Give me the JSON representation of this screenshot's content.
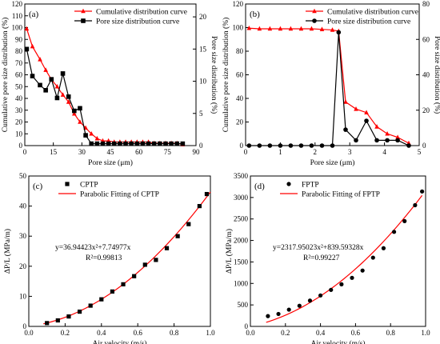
{
  "chart_data": [
    {
      "type": "line",
      "panel_label": "(a)",
      "xlabel": "Pore size (μm)",
      "ylabel": "Cumulative pore size distribution (%)",
      "y2label": "Pore size distribution (%)",
      "xlim": [
        0,
        90
      ],
      "ylim": [
        0,
        120
      ],
      "y2lim": [
        0,
        22
      ],
      "xticks": [
        0,
        15,
        30,
        45,
        60,
        75,
        90
      ],
      "yticks": [
        0,
        10,
        20,
        30,
        40,
        50,
        60,
        70,
        80,
        90,
        100,
        110,
        120
      ],
      "y2ticks": [
        0,
        5,
        10,
        15,
        20
      ],
      "legend_position": "top-right",
      "series": [
        {
          "name": "Cumulative distribution curve",
          "axis": "left",
          "color": "#ff0000",
          "marker": "triangle",
          "x": [
            1,
            4,
            8,
            11,
            14,
            17,
            20,
            23,
            26,
            29,
            32,
            35,
            38,
            41,
            44,
            47,
            50,
            53,
            56,
            59,
            62,
            65,
            68,
            71,
            74,
            77,
            80,
            83
          ],
          "y": [
            99,
            84,
            73,
            64,
            56,
            50,
            43,
            37,
            27,
            20,
            15,
            10,
            6,
            4,
            4,
            3,
            3,
            3,
            3,
            3,
            3,
            3,
            2,
            2,
            2,
            2,
            2,
            1
          ]
        },
        {
          "name": "Pore size distribution curve",
          "axis": "right",
          "color": "#000000",
          "marker": "square",
          "x": [
            1,
            4,
            8,
            11,
            14,
            17,
            20,
            23,
            26,
            29,
            32,
            35,
            38,
            41,
            44,
            47,
            50,
            53,
            56,
            59,
            62,
            65,
            68,
            71,
            74,
            77,
            80,
            83
          ],
          "y": [
            15.0,
            10.8,
            9.4,
            8.6,
            10.3,
            7.4,
            11.2,
            7.6,
            5.4,
            5.8,
            1.6,
            0.3,
            0.3,
            0.3,
            0.3,
            0.3,
            0.3,
            0.3,
            0.3,
            0.3,
            0.3,
            0.3,
            0.3,
            0.3,
            0.3,
            0.3,
            0.3,
            0.3
          ]
        }
      ]
    },
    {
      "type": "line",
      "panel_label": "(b)",
      "xlabel": "Pore size (μm)",
      "ylabel": "Cumulative pore size distribution (%)",
      "y2label": "Pore size distribution (%)",
      "xlim": [
        0,
        5
      ],
      "ylim": [
        0,
        120
      ],
      "y2lim": [
        0,
        80
      ],
      "xticks": [
        0,
        1,
        2,
        3,
        4,
        5
      ],
      "yticks": [
        0,
        20,
        40,
        60,
        80,
        100,
        120
      ],
      "y2ticks": [
        0,
        20,
        40,
        60,
        80
      ],
      "legend_position": "top-right",
      "series": [
        {
          "name": "Cumulative distribution curve",
          "axis": "left",
          "color": "#ff0000",
          "marker": "triangle",
          "x": [
            0.1,
            0.4,
            0.7,
            1.0,
            1.3,
            1.6,
            1.9,
            2.2,
            2.5,
            2.68,
            2.88,
            3.18,
            3.48,
            3.78,
            4.08,
            4.38,
            4.7
          ],
          "y": [
            99.5,
            99,
            99,
            99,
            99,
            99,
            99,
            98.5,
            98,
            97,
            37,
            31,
            28,
            16,
            10,
            7,
            2
          ]
        },
        {
          "name": "Pore size distribution curve",
          "axis": "right",
          "color": "#000000",
          "marker": "circle",
          "x": [
            0.1,
            0.4,
            0.7,
            1.0,
            1.3,
            1.6,
            1.9,
            2.2,
            2.5,
            2.68,
            2.88,
            3.18,
            3.48,
            3.78,
            4.08,
            4.38,
            4.7
          ],
          "y": [
            0,
            0,
            0,
            0,
            0,
            0,
            0,
            0,
            0,
            64,
            9,
            3,
            14,
            3,
            3,
            3,
            0
          ]
        }
      ]
    },
    {
      "type": "scatter",
      "panel_label": "(c)",
      "xlabel": "Air velocity (m/s)",
      "ylabel": "ΔP/L (MPa/m)",
      "xlim": [
        0,
        1.0
      ],
      "ylim": [
        0,
        50
      ],
      "xticks": [
        0.0,
        0.2,
        0.4,
        0.6,
        0.8,
        1.0
      ],
      "yticks": [
        0,
        10,
        20,
        30,
        40,
        50
      ],
      "legend_position": "top-left",
      "equation": "y=36.94423x²+7.74977x",
      "r_squared": "R²=0.99813",
      "fit": {
        "name": "Parabolic Fitting of CPTP",
        "color": "#ff0000",
        "a": 36.94423,
        "b": 7.74977,
        "x_range": [
          0.08,
          1.0
        ]
      },
      "series": [
        {
          "name": "CPTP",
          "color": "#000000",
          "marker": "square",
          "x": [
            0.1,
            0.16,
            0.22,
            0.28,
            0.34,
            0.4,
            0.46,
            0.52,
            0.58,
            0.64,
            0.7,
            0.76,
            0.82,
            0.88,
            0.94,
            0.98
          ],
          "y": [
            1.1,
            2.0,
            3.3,
            4.9,
            6.9,
            9.0,
            11.6,
            14.0,
            16.7,
            20.5,
            22.1,
            26.0,
            30.0,
            34.0,
            40.0,
            44.0
          ]
        }
      ]
    },
    {
      "type": "scatter",
      "panel_label": "(d)",
      "xlabel": "Air velocity (m/s)",
      "ylabel": "ΔP/L (MPa/m)",
      "xlim": [
        0,
        1.0
      ],
      "ylim": [
        0,
        3500
      ],
      "xticks": [
        0.0,
        0.2,
        0.4,
        0.6,
        0.8,
        1.0
      ],
      "yticks": [
        0,
        500,
        1000,
        1500,
        2000,
        2500,
        3000,
        3500
      ],
      "legend_position": "top-left",
      "equation": "y=2317.95023x²+839.59328x",
      "r_squared": "R²=0.99227",
      "fit": {
        "name": "Parabolic Fitting of FPTP",
        "color": "#ff0000",
        "a": 2317.95023,
        "b": 839.59328,
        "x_range": [
          0.09,
          0.98
        ]
      },
      "series": [
        {
          "name": "FPTP",
          "color": "#000000",
          "marker": "circle",
          "x": [
            0.1,
            0.16,
            0.22,
            0.28,
            0.34,
            0.4,
            0.46,
            0.52,
            0.58,
            0.64,
            0.7,
            0.76,
            0.82,
            0.88,
            0.94,
            0.98
          ],
          "y": [
            240,
            290,
            390,
            480,
            600,
            720,
            850,
            980,
            1130,
            1300,
            1600,
            1820,
            2200,
            2450,
            2820,
            3140
          ]
        }
      ]
    }
  ]
}
